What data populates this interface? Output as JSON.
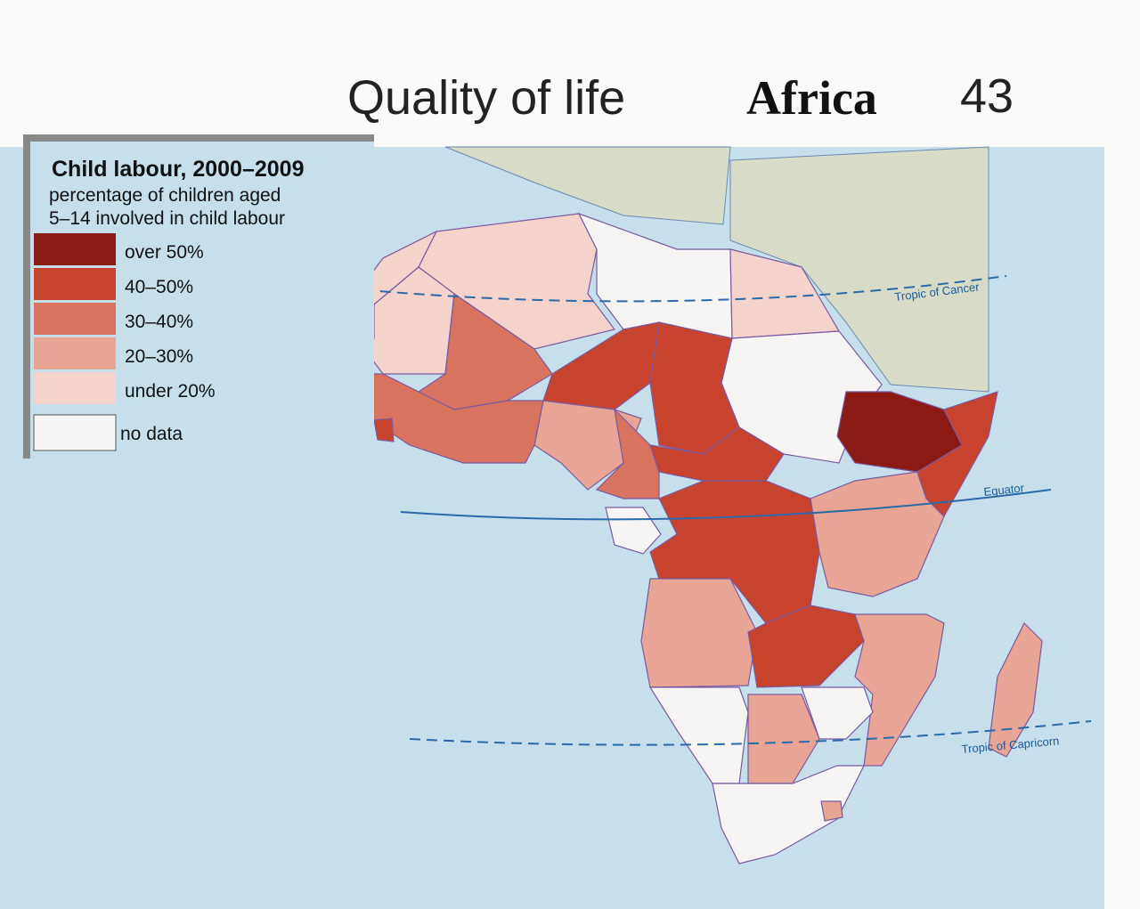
{
  "header": {
    "section": "Quality of life",
    "region": "Africa",
    "page": "43"
  },
  "legend": {
    "title": "Child labour, 2000–2009",
    "subtitle_lines": [
      "percentage of children aged",
      "5–14 involved in child labour"
    ],
    "items": [
      {
        "label": "over 50%",
        "color": "#8b1a15"
      },
      {
        "label": "40–50%",
        "color": "#c8432e"
      },
      {
        "label": "30–40%",
        "color": "#d7735e"
      },
      {
        "label": "20–30%",
        "color": "#e8a595"
      },
      {
        "label": "under 20%",
        "color": "#f3d3cc"
      },
      {
        "label": "no data",
        "color": "#f7f5f3"
      }
    ]
  },
  "map_labels": {
    "tropic_cancer": "Tropic of Cancer",
    "equator": "Equator",
    "tropic_capricorn": "Tropic of Capricorn"
  }
}
